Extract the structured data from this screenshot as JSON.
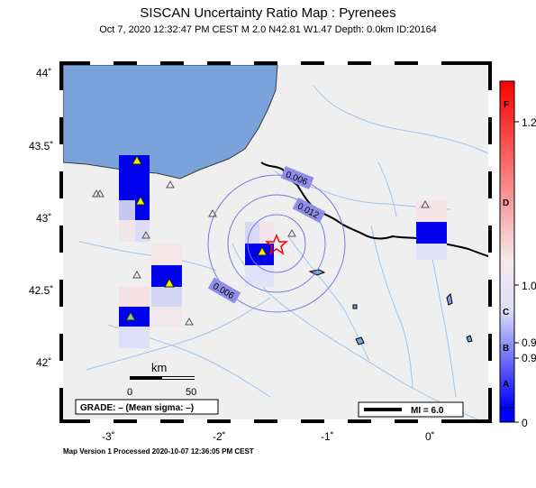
{
  "header": {
    "title": "SISCAN Uncertainty Ratio Map : Pyrenees",
    "subtitle": "Oct  7, 2020 12:32:47 PM CEST   M 2.0   N42.81 W1.47   Depth: 0.0km   ID:20164"
  },
  "axes": {
    "lat_labels": [
      "44˚",
      "43.5˚",
      "43˚",
      "42.5˚",
      "42˚"
    ],
    "lon_labels": [
      "-3˚",
      "-2˚",
      "-1˚",
      "0˚"
    ]
  },
  "scale_bar": {
    "unit": "km",
    "labels": [
      "0",
      "50"
    ]
  },
  "grade_box": {
    "text": "GRADE: – (Mean sigma: –)"
  },
  "mi_legend": {
    "label": "MI = 6.0"
  },
  "contours": [
    "0.006",
    "0.012",
    "0.006"
  ],
  "colorbar": {
    "left_labels": [
      "F",
      "D",
      "C",
      "B",
      "A"
    ],
    "right_labels": [
      "1.2",
      "1.0",
      "0.9",
      "0.9",
      "0"
    ],
    "colors": {
      "top": "#ff0000",
      "mid": "#f4eaea",
      "bottom": "#0000ff"
    }
  },
  "footer": {
    "text": "Map Version 1 Processed 2020-10-07 12:36:05 PM CEST"
  },
  "colors": {
    "land": "#efefef",
    "sea": "#7aa3dc",
    "river": "#9fc4e8",
    "epicenter": "#ff0000"
  }
}
